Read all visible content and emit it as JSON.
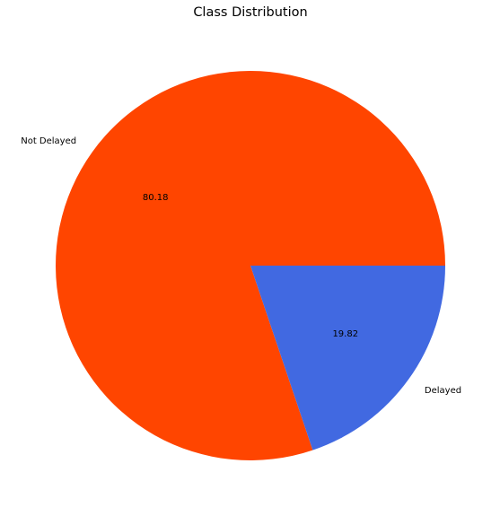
{
  "chart_data": {
    "type": "pie",
    "title": "Class Distribution",
    "slices": [
      {
        "label": "Not Delayed",
        "value": 80.18,
        "pct_label": "80.18",
        "color": "#FF4500"
      },
      {
        "label": "Delayed",
        "value": 19.82,
        "pct_label": "19.82",
        "color": "#4169E1"
      }
    ],
    "start_angle_deg": 0,
    "direction": "counterclockwise",
    "legend": "none"
  }
}
